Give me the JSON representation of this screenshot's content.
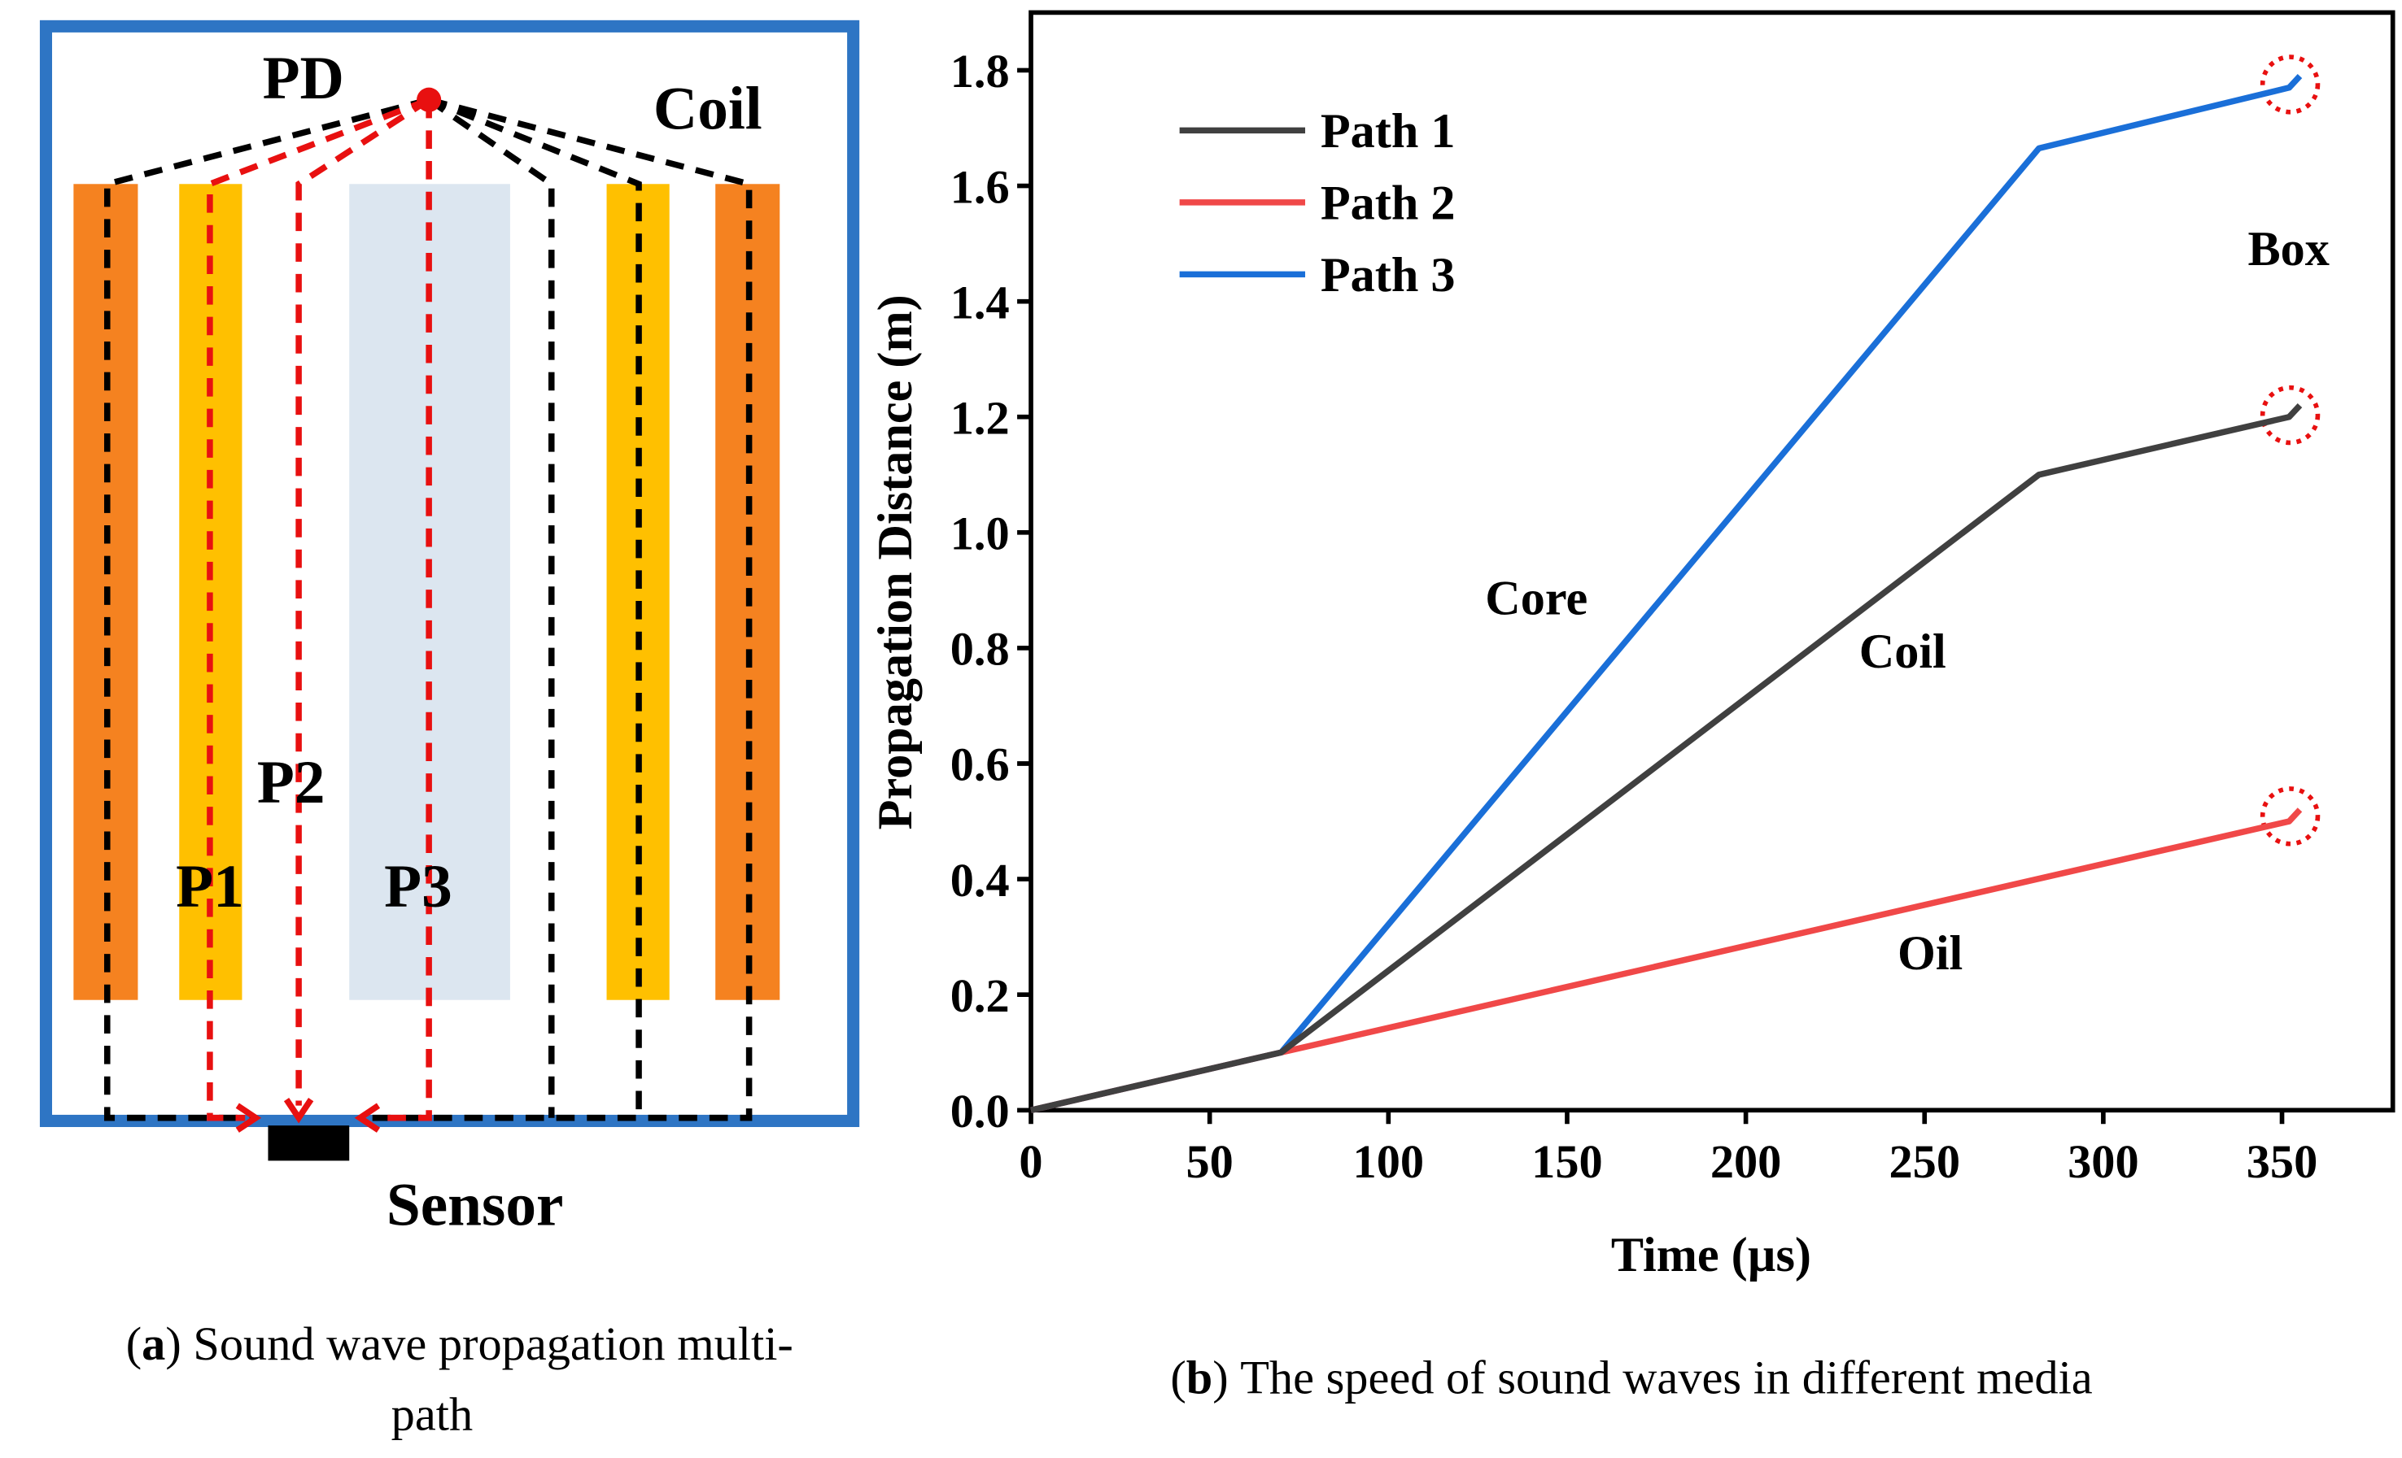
{
  "diagram": {
    "labels": {
      "pd": "PD",
      "coil": "Coil",
      "p1": "P1",
      "p2": "P2",
      "p3": "P3",
      "sensor": "Sensor"
    },
    "caption": {
      "open": "(",
      "label": "a",
      "close": ")",
      "lines": [
        "Sound wave propagation multi-",
        "path"
      ]
    }
  },
  "chart_data": {
    "type": "line",
    "caption": {
      "open": "(",
      "label": "b",
      "close": ")",
      "text": "The speed of sound waves in different media"
    },
    "x_label": "Time (µs)",
    "y_label": "Propagation Distance (m)",
    "xlim": [
      0,
      381
    ],
    "ylim": [
      0,
      1.9
    ],
    "xticks": [
      0,
      50,
      100,
      150,
      200,
      250,
      300,
      350
    ],
    "yticks": [
      {
        "value": 0,
        "label": "0.0"
      },
      0.2,
      0.4,
      0.6,
      0.8,
      {
        "value": 1,
        "label": "1.0"
      },
      1.2,
      1.4,
      1.6,
      1.8
    ],
    "legend": "upper left",
    "annotations": [
      "Core",
      "Coil",
      "Oil",
      "Box"
    ],
    "series": [
      {
        "name": "Path 1",
        "color": "#404040",
        "x": [
          0,
          70,
          282,
          352,
          355
        ],
        "values": [
          0,
          0.1,
          1.1,
          1.2,
          1.22
        ]
      },
      {
        "name": "Path 2",
        "color": "#f04848",
        "x": [
          0,
          70,
          352,
          355
        ],
        "values": [
          0,
          0.1,
          0.5,
          0.52
        ]
      },
      {
        "name": "Path 3",
        "color": "#1a6fd8",
        "x": [
          0,
          70,
          282,
          352,
          355
        ],
        "values": [
          0,
          0.1,
          1.665,
          1.77,
          1.79
        ]
      }
    ]
  }
}
